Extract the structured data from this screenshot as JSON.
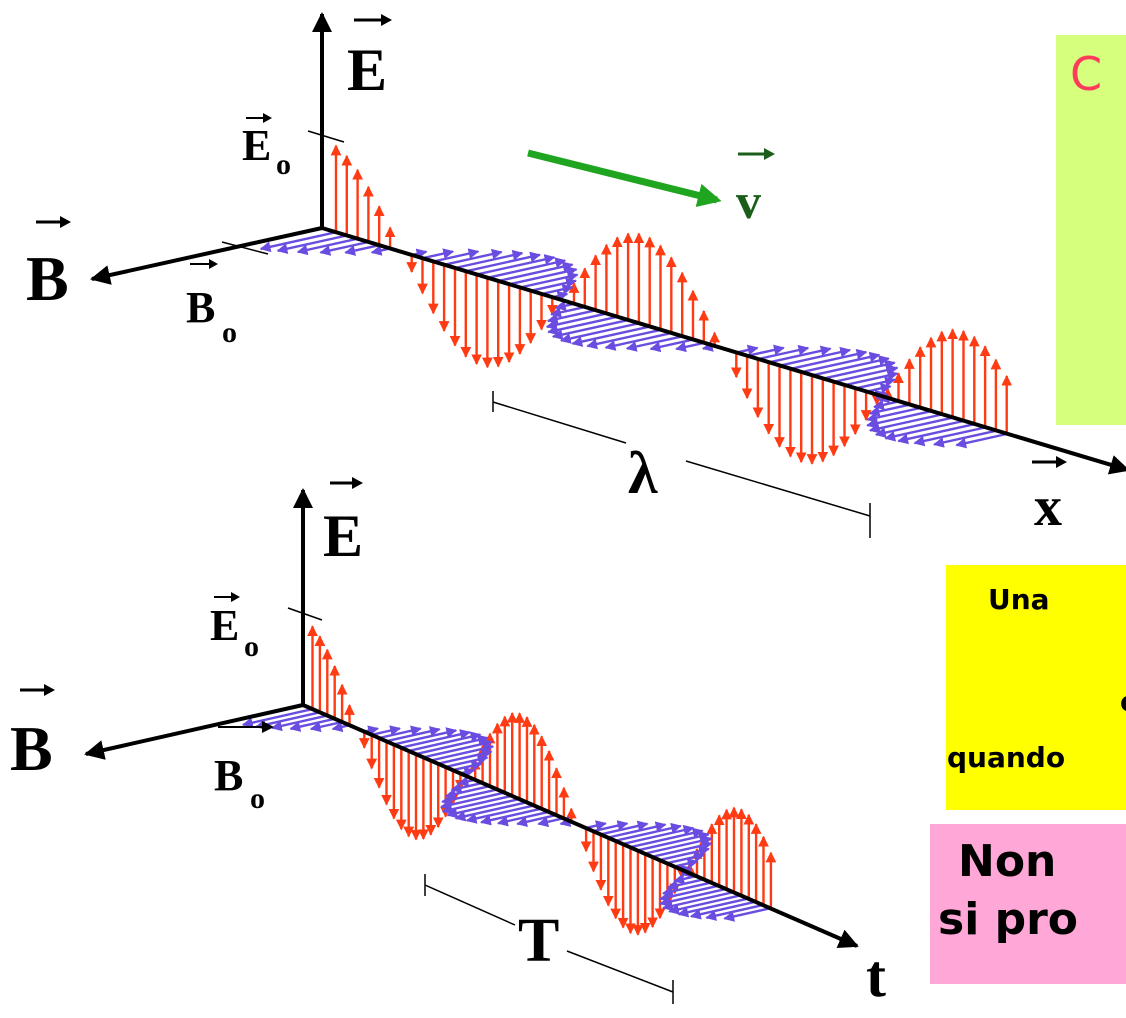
{
  "diagram": {
    "top_wave": {
      "e_axis_label": "E",
      "e_amplitude_label": "E",
      "e_amplitude_subscript": "o",
      "b_axis_label": "B",
      "b_amplitude_label": "B",
      "b_amplitude_subscript": "o",
      "velocity_label": "v",
      "wavelength_label": "λ",
      "x_axis_label": "x"
    },
    "bottom_wave": {
      "e_axis_label": "E",
      "e_amplitude_label": "E",
      "e_amplitude_subscript": "o",
      "b_axis_label": "B",
      "b_amplitude_label": "B",
      "b_amplitude_subscript": "o",
      "period_label": "T",
      "t_axis_label": "t"
    },
    "colors": {
      "electric_field": "#ff3b14",
      "magnetic_field": "#6a4de0",
      "velocity": "#1fa51f",
      "velocity_label": "#1a5e1a",
      "axis": "#000000",
      "box_green": "#d6ff7e",
      "box_yellow": "#ffff00",
      "box_pink": "#ffa8d8",
      "title_fragment": "#ff3b5c"
    }
  },
  "side_panels": {
    "green_box": {
      "fragment": "C"
    },
    "yellow_box": {
      "line1": "Una",
      "line2": "o",
      "line3": "quando"
    },
    "pink_box": {
      "line1": "Non",
      "line2": "si pro"
    }
  }
}
